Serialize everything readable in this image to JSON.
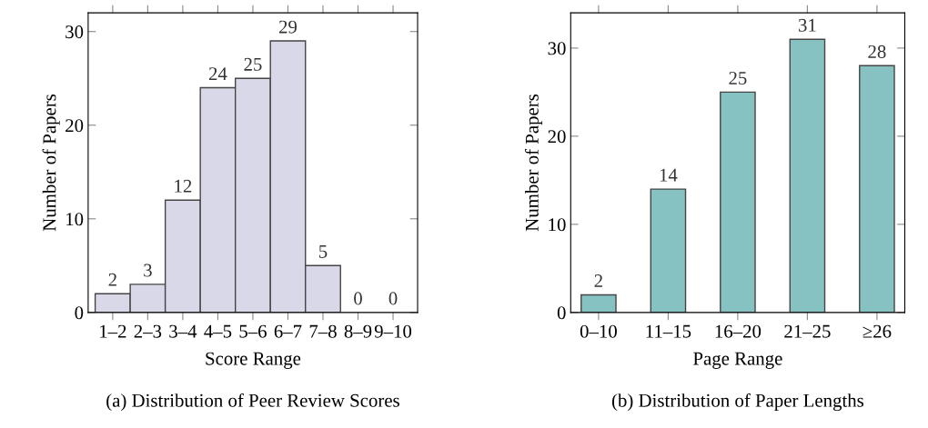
{
  "chart_data": [
    {
      "type": "bar",
      "title": "(a) Distribution of Peer Review Scores",
      "xlabel": "Score Range",
      "ylabel": "Number of Papers",
      "categories": [
        "1–2",
        "2–3",
        "3–4",
        "4–5",
        "5–6",
        "6–7",
        "7–8",
        "8–9",
        "9–10"
      ],
      "values": [
        2,
        3,
        12,
        24,
        25,
        29,
        5,
        0,
        0
      ],
      "color": "#d8d8e9",
      "ylim": [
        0,
        32
      ],
      "yticks": [
        0,
        10,
        20,
        30
      ],
      "data_labels": true,
      "grid": false,
      "legend": false
    },
    {
      "type": "bar",
      "title": "(b) Distribution of Paper Lengths",
      "xlabel": "Page Range",
      "ylabel": "Number of Papers",
      "categories": [
        "0–10",
        "11–15",
        "16–20",
        "21–25",
        "≥26"
      ],
      "values": [
        2,
        14,
        25,
        31,
        28
      ],
      "color": "#86c2c2",
      "ylim": [
        0,
        34
      ],
      "yticks": [
        0,
        10,
        20,
        30
      ],
      "data_labels": true,
      "grid": false,
      "legend": false
    }
  ]
}
